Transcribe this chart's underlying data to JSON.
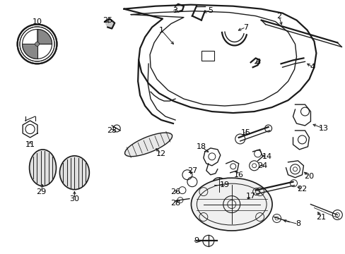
{
  "bg_color": "#ffffff",
  "line_color": "#1a1a1a",
  "label_color": "#000000",
  "label_fontsize": 8,
  "fig_width": 4.89,
  "fig_height": 3.6,
  "dpi": 100
}
